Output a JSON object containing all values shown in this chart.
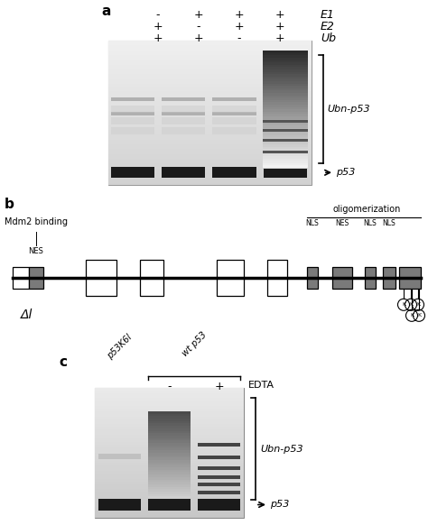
{
  "bg_color": "#ffffff",
  "panel_a": {
    "label": "a",
    "cols_signs": [
      [
        "-",
        "+",
        "+",
        "+"
      ],
      [
        "+",
        "-",
        "+",
        "+"
      ],
      [
        "+",
        "+",
        "-",
        "+"
      ]
    ],
    "row_labels": [
      "E1",
      "E2",
      "Ub"
    ],
    "bracket_label": "Ubn-p53",
    "arrow_label": "p53"
  },
  "panel_b": {
    "label": "b",
    "mdm2_label": "Mdm2 binding",
    "nes_label": "NES",
    "oligo_label": "oligomerization",
    "nls1_label": "NLS",
    "nes2_label": "NES",
    "nls2_label": "NLS",
    "nls3_label": "NLS",
    "delta_label": "Δl"
  },
  "panel_c": {
    "label": "c",
    "p53k6l_label": "p53K6l",
    "wtp53_label": "wt p53",
    "minus_label": "-",
    "plus_label": "+",
    "edta_label": "EDTA",
    "bracket_label": "Ubn-p53",
    "arrow_label": "p53"
  }
}
